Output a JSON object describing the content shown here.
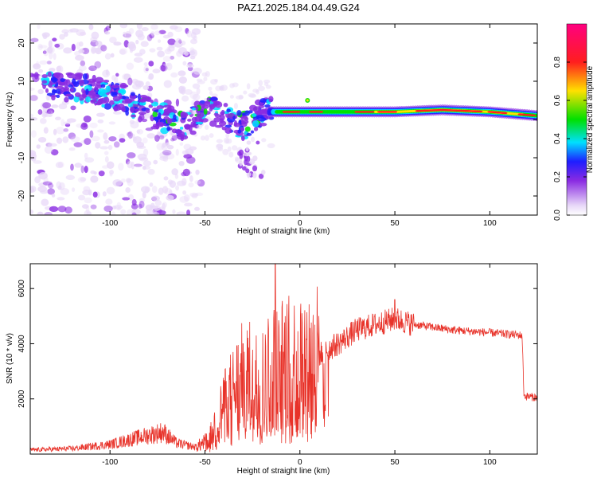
{
  "title": "PAZ1.2025.184.04.49.G24",
  "chart_data": [
    {
      "type": "heatmap",
      "xlabel": "Height of straight line (km)",
      "ylabel": "Frequency (Hz)",
      "xlim": [
        -142,
        125
      ],
      "ylim": [
        -25,
        25
      ],
      "xticks": [
        -100,
        -50,
        0,
        50,
        100
      ],
      "yticks": [
        -20,
        -10,
        0,
        10,
        20
      ],
      "colorbar": {
        "label": "Normalized spectral amplitude",
        "range": [
          0,
          1
        ],
        "ticks": [
          "0.0",
          "0.2",
          "0.4",
          "0.6",
          "0.8"
        ],
        "tick_values": [
          0.0,
          0.2,
          0.4,
          0.6,
          0.8
        ]
      },
      "colors": {
        "low": "#e8d8f8",
        "violet": "#8a2be2",
        "blue": "#1e1eff",
        "cyan": "#00e0ff",
        "green": "#00e000",
        "yellow": "#ffe000",
        "red": "#ff1e1e",
        "magenta": "#ff0080"
      },
      "ridge": [
        {
          "x": -130,
          "y": 9
        },
        {
          "x": -110,
          "y": 8
        },
        {
          "x": -90,
          "y": 5
        },
        {
          "x": -75,
          "y": 1
        },
        {
          "x": -60,
          "y": -2
        },
        {
          "x": -50,
          "y": 3
        },
        {
          "x": -40,
          "y": 1
        },
        {
          "x": -30,
          "y": -2
        },
        {
          "x": -20,
          "y": 2
        },
        {
          "x": -10,
          "y": 2
        },
        {
          "x": 0,
          "y": 2
        },
        {
          "x": 25,
          "y": 2
        },
        {
          "x": 50,
          "y": 2
        },
        {
          "x": 75,
          "y": 2.5
        },
        {
          "x": 100,
          "y": 2
        },
        {
          "x": 125,
          "y": 1
        }
      ]
    },
    {
      "type": "line",
      "xlabel": "Height of straight line (km)",
      "ylabel": "SNR (10 * v/v)",
      "xlim": [
        -142,
        125
      ],
      "ylim": [
        0,
        6900
      ],
      "xticks": [
        -100,
        -50,
        0,
        50,
        100
      ],
      "yticks": [
        2000,
        4000,
        6000
      ],
      "line_color": "#e8332a",
      "series": [
        {
          "envelope": [
            {
              "x": -142,
              "y": 150
            },
            {
              "x": -120,
              "y": 200
            },
            {
              "x": -100,
              "y": 350
            },
            {
              "x": -85,
              "y": 600
            },
            {
              "x": -72,
              "y": 800
            },
            {
              "x": -65,
              "y": 400
            },
            {
              "x": -55,
              "y": 250
            },
            {
              "x": -48,
              "y": 500
            },
            {
              "x": -40,
              "y": 1800
            },
            {
              "x": -30,
              "y": 2800
            },
            {
              "x": -20,
              "y": 2700
            },
            {
              "x": -13,
              "y": 3200
            },
            {
              "x": 0,
              "y": 3400
            },
            {
              "x": 10,
              "y": 3600
            },
            {
              "x": 20,
              "y": 4000
            },
            {
              "x": 30,
              "y": 4500
            },
            {
              "x": 40,
              "y": 4700
            },
            {
              "x": 50,
              "y": 4900
            },
            {
              "x": 60,
              "y": 4700
            },
            {
              "x": 80,
              "y": 4500
            },
            {
              "x": 100,
              "y": 4400
            },
            {
              "x": 117,
              "y": 4300
            },
            {
              "x": 118,
              "y": 2100
            },
            {
              "x": 125,
              "y": 2050
            }
          ],
          "spikes": [
            {
              "x": -13,
              "y": 6900
            },
            {
              "x": -23,
              "y": 4300
            },
            {
              "x": -30,
              "y": 4000
            },
            {
              "x": 50,
              "y": 5600
            },
            {
              "x": 10,
              "y": 5000
            }
          ]
        }
      ]
    }
  ]
}
